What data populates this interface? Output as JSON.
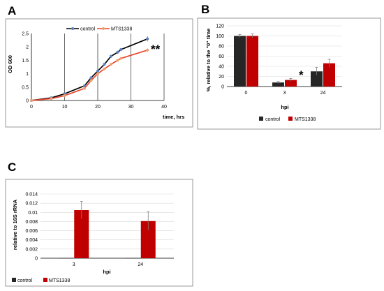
{
  "figure": {
    "panel_labels": [
      "A",
      "B",
      "C"
    ]
  },
  "chart_data": [
    {
      "panel": "A",
      "type": "line",
      "xlabel": "time, hrs",
      "ylabel": "OD 600",
      "xlim": [
        0,
        40
      ],
      "ylim": [
        0,
        2.5
      ],
      "xticks": [
        0,
        10,
        20,
        30,
        40
      ],
      "yticks": [
        0,
        0.5,
        1,
        1.5,
        2,
        2.5
      ],
      "xtick_labels": [
        "0",
        "10",
        "20",
        "30",
        "40"
      ],
      "ytick_labels": [
        "0",
        "0.5",
        "1",
        "1.5",
        "2",
        "2.5"
      ],
      "grid": "vertical",
      "legend": "top",
      "annotation": "**",
      "series": [
        {
          "name": "control",
          "color": "#000000",
          "marker_color": "#5b7fc0",
          "x": [
            0,
            6,
            10,
            16,
            18,
            20,
            22,
            24,
            26,
            27,
            35
          ],
          "y": [
            0,
            0.1,
            0.25,
            0.55,
            0.85,
            1.1,
            1.35,
            1.65,
            1.8,
            1.9,
            2.3
          ],
          "err": [
            0,
            0.02,
            0.03,
            0.05,
            0.05,
            0.05,
            0.05,
            0.06,
            0.06,
            0.06,
            0.1
          ]
        },
        {
          "name": "MTS1338",
          "color": "#e8452c",
          "marker_color": "#f0a070",
          "x": [
            0,
            6,
            10,
            16,
            18,
            20,
            22,
            24,
            26,
            27,
            35
          ],
          "y": [
            0,
            0.07,
            0.18,
            0.45,
            0.75,
            1.0,
            1.18,
            1.35,
            1.5,
            1.57,
            1.88
          ],
          "err": [
            0,
            0.02,
            0.03,
            0.05,
            0.05,
            0.05,
            0.05,
            0.05,
            0.05,
            0.05,
            0.07
          ]
        }
      ]
    },
    {
      "panel": "B",
      "type": "bar",
      "categories": [
        "0",
        "3",
        "24"
      ],
      "xlabel": "hpi",
      "ylabel": "%, relative to the \"0\" time",
      "ylim": [
        0,
        120
      ],
      "yticks": [
        0,
        20,
        40,
        60,
        80,
        100,
        120
      ],
      "ytick_labels": [
        "0",
        "20",
        "40",
        "60",
        "80",
        "100",
        "120"
      ],
      "legend": "bottom",
      "annotation": "*",
      "series": [
        {
          "name": "control",
          "color": "#262626",
          "values": [
            100,
            8,
            30
          ],
          "err": [
            3,
            2,
            8
          ]
        },
        {
          "name": "MTS1338",
          "color": "#c00000",
          "values": [
            100,
            13,
            46
          ],
          "err": [
            4,
            3,
            8
          ]
        }
      ]
    },
    {
      "panel": "C",
      "type": "bar",
      "categories": [
        "3",
        "24"
      ],
      "xlabel": "hpi",
      "ylabel": "relative to 16S rRNA",
      "ylim": [
        0,
        0.014
      ],
      "yticks": [
        0,
        0.002,
        0.004,
        0.006,
        0.008,
        0.01,
        0.012,
        0.014
      ],
      "ytick_labels": [
        "0",
        "0.002",
        "0.004",
        "0.006",
        "0.008",
        "0.01",
        "0.012",
        "0.014"
      ],
      "legend": "bottom",
      "series": [
        {
          "name": "control",
          "color": "#262626",
          "values": [
            2e-05,
            2e-05
          ],
          "err": [
            0,
            0
          ]
        },
        {
          "name": "MTS1338",
          "color": "#c00000",
          "values": [
            0.0105,
            0.0081
          ],
          "err": [
            0.0019,
            0.002
          ]
        }
      ]
    }
  ]
}
